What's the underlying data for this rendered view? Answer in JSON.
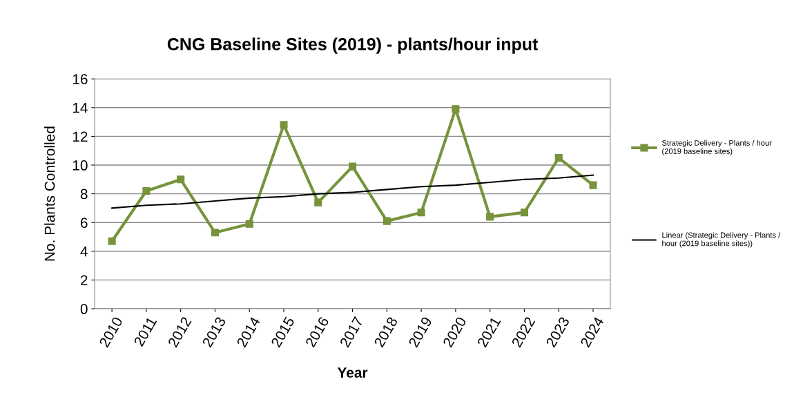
{
  "chart_data": {
    "type": "line",
    "title": "CNG Baseline Sites (2019) - plants/hour input",
    "xlabel": "Year",
    "ylabel": "No. Plants Controlled",
    "categories": [
      "2010",
      "2011",
      "2012",
      "2013",
      "2014",
      "2015",
      "2016",
      "2017",
      "2018",
      "2019",
      "2020",
      "2021",
      "2022",
      "2023",
      "2024"
    ],
    "series": [
      {
        "name": "Strategic Delivery - Plants / hour\n(2019 baseline sites)",
        "color": "#77933c",
        "values": [
          4.7,
          8.2,
          9.0,
          5.3,
          5.9,
          12.8,
          7.4,
          9.9,
          6.1,
          6.7,
          13.9,
          6.4,
          6.7,
          10.5,
          8.6
        ],
        "marker": "square"
      },
      {
        "name": "Linear (Strategic Delivery - Plants /\nhour (2019 baseline sites))",
        "color": "#000000",
        "values": [
          7.0,
          7.2,
          7.3,
          7.5,
          7.7,
          7.8,
          8.0,
          8.1,
          8.3,
          8.5,
          8.6,
          8.8,
          9.0,
          9.1,
          9.3
        ],
        "marker": "none"
      }
    ],
    "ylim": [
      0,
      16
    ],
    "yticks": [
      0,
      2,
      4,
      6,
      8,
      10,
      12,
      14,
      16
    ],
    "grid": "y",
    "legend": "right",
    "line_style": "solid"
  }
}
